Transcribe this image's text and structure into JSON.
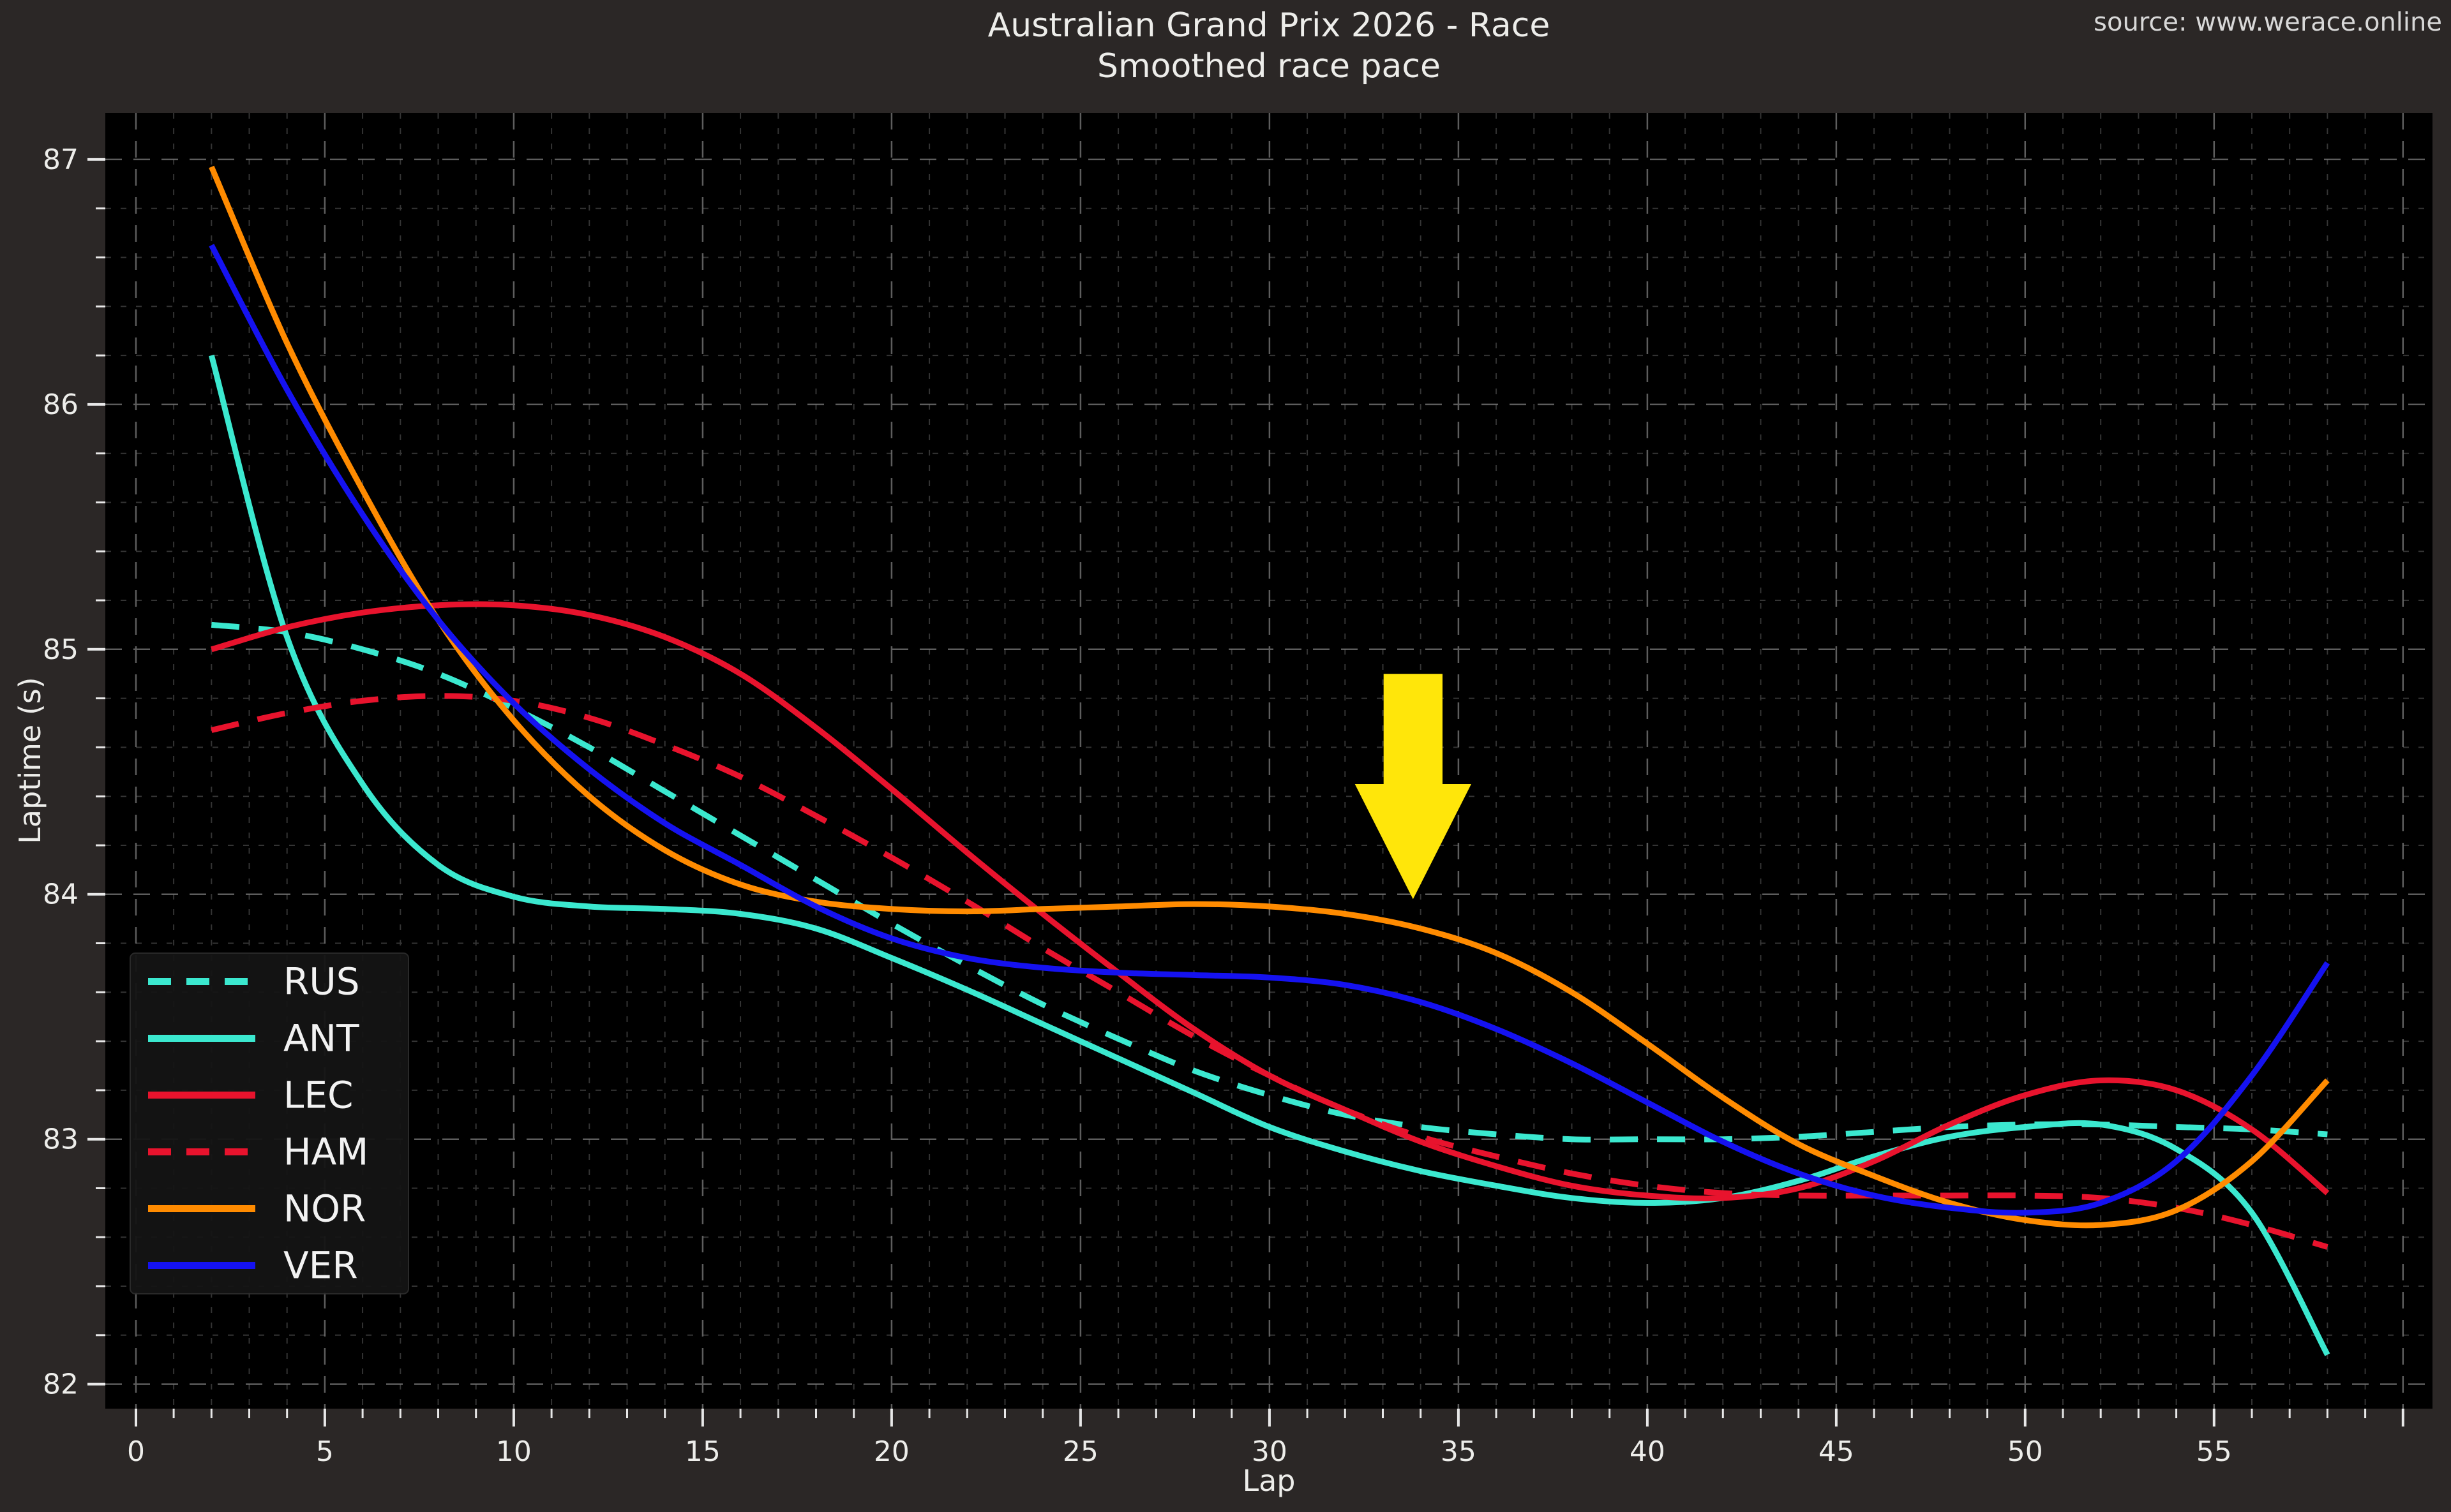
{
  "title": {
    "line1": "Australian Grand Prix 2026 - Race",
    "line2": "Smoothed race pace"
  },
  "source": "source: www.werace.online",
  "colors": {
    "figure_bg": "#2B2726",
    "plot_bg": "#000000",
    "text": "#EDEDEA",
    "tick": "#E8E8E8",
    "grid_minor": "#3A3A3A",
    "grid_major": "#6E6E6E",
    "legend_bg": "#151515",
    "annotation_yellow": "#FFE60A",
    "turquoise": "#3BE8CF",
    "red": "#E8132D",
    "orange": "#FF8B00",
    "blue": "#1512F0"
  },
  "chart_data": {
    "type": "line",
    "title": "Australian Grand Prix 2026 - Race",
    "subtitle": "Smoothed race pace",
    "xlabel": "Lap",
    "ylabel": "Laptime (s)",
    "xlim": [
      -0.81,
      60.78
    ],
    "ylim": [
      81.9,
      87.19
    ],
    "xticks": [
      0,
      5,
      10,
      15,
      20,
      25,
      30,
      35,
      40,
      45,
      50,
      55
    ],
    "yticks": [
      82,
      83,
      84,
      85,
      86,
      87
    ],
    "minor_grid_x_step": 1,
    "minor_grid_y_step": 0.2,
    "grid": true,
    "legend_position": "lower left",
    "x": [
      2,
      4,
      6,
      8,
      10,
      12,
      14,
      16,
      18,
      20,
      22,
      24,
      26,
      28,
      30,
      32,
      34,
      36,
      38,
      40,
      42,
      44,
      46,
      48,
      50,
      52,
      54,
      56,
      58
    ],
    "series": [
      {
        "name": "RUS",
        "color": "#3BE8CF",
        "dash": "dashed",
        "values": [
          85.1,
          85.07,
          85.0,
          84.9,
          84.76,
          84.6,
          84.42,
          84.24,
          84.06,
          83.88,
          83.71,
          83.55,
          83.41,
          83.28,
          83.18,
          83.1,
          83.05,
          83.02,
          83.0,
          83.0,
          83.0,
          83.01,
          83.03,
          83.05,
          83.06,
          83.06,
          83.05,
          83.04,
          83.02
        ]
      },
      {
        "name": "ANT",
        "color": "#3BE8CF",
        "dash": "solid",
        "values": [
          86.2,
          85.05,
          84.45,
          84.12,
          83.99,
          83.95,
          83.94,
          83.92,
          83.86,
          83.74,
          83.61,
          83.47,
          83.33,
          83.19,
          83.05,
          82.95,
          82.87,
          82.81,
          82.76,
          82.74,
          82.76,
          82.83,
          82.93,
          83.01,
          83.05,
          83.06,
          82.96,
          82.7,
          82.12
        ]
      },
      {
        "name": "LEC",
        "color": "#E8132D",
        "dash": "solid",
        "values": [
          85.0,
          85.09,
          85.15,
          85.18,
          85.18,
          85.14,
          85.05,
          84.9,
          84.68,
          84.43,
          84.17,
          83.92,
          83.68,
          83.45,
          83.26,
          83.12,
          82.99,
          82.89,
          82.81,
          82.77,
          82.76,
          82.8,
          82.91,
          83.06,
          83.18,
          83.24,
          83.2,
          83.04,
          82.78
        ]
      },
      {
        "name": "HAM",
        "color": "#E8132D",
        "dash": "dashed",
        "values": [
          84.67,
          84.74,
          84.79,
          84.81,
          84.79,
          84.72,
          84.61,
          84.48,
          84.32,
          84.15,
          83.97,
          83.78,
          83.6,
          83.42,
          83.26,
          83.12,
          83.01,
          82.93,
          82.86,
          82.81,
          82.78,
          82.77,
          82.77,
          82.77,
          82.77,
          82.76,
          82.72,
          82.65,
          82.56
        ]
      },
      {
        "name": "NOR",
        "color": "#FF8B00",
        "dash": "solid",
        "values": [
          86.97,
          86.25,
          85.65,
          85.12,
          84.71,
          84.4,
          84.18,
          84.04,
          83.97,
          83.94,
          83.93,
          83.94,
          83.95,
          83.96,
          83.95,
          83.92,
          83.86,
          83.76,
          83.6,
          83.39,
          83.17,
          82.98,
          82.85,
          82.74,
          82.67,
          82.65,
          82.71,
          82.91,
          83.24
        ]
      },
      {
        "name": "VER",
        "color": "#1512F0",
        "dash": "solid",
        "values": [
          86.65,
          86.06,
          85.55,
          85.12,
          84.78,
          84.51,
          84.29,
          84.12,
          83.95,
          83.82,
          83.74,
          83.7,
          83.68,
          83.67,
          83.66,
          83.63,
          83.56,
          83.45,
          83.31,
          83.15,
          82.99,
          82.86,
          82.77,
          82.72,
          82.7,
          82.74,
          82.91,
          83.26,
          83.72
        ]
      }
    ],
    "legend_labels": [
      "RUS",
      "ANT",
      "LEC",
      "HAM",
      "NOR",
      "VER"
    ],
    "annotation": {
      "type": "down-arrow",
      "color": "#FFE60A",
      "lap": 33.8,
      "top_laptime": 84.9,
      "head_top_laptime": 84.45,
      "tip_laptime": 83.98,
      "shaft_half_width_laps": 0.78,
      "head_half_width_laps": 1.54
    }
  }
}
